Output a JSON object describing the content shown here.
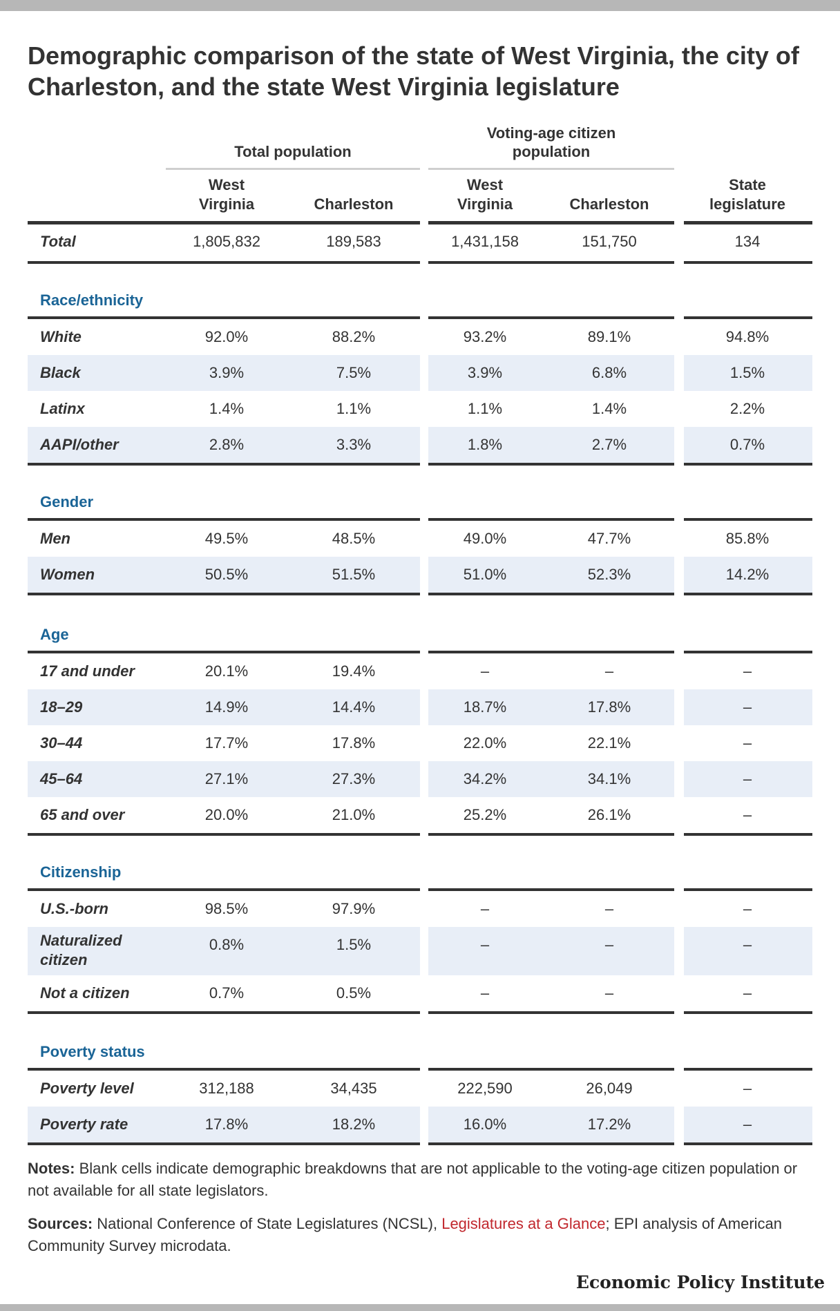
{
  "title": "Demographic comparison of the state of West Virginia, the city of Charleston, and the state West Virginia legislature",
  "groups": [
    "Total population",
    "Voting-age citizen population"
  ],
  "columns": [
    [
      "West",
      "Virginia"
    ],
    [
      "Charleston"
    ],
    [
      "West",
      "Virginia"
    ],
    [
      "Charleston"
    ],
    [
      "State",
      "legislature"
    ]
  ],
  "chart_data": {
    "type": "table",
    "total": {
      "label": "Total",
      "cells": [
        "1,805,832",
        "189,583",
        "1,431,158",
        "151,750",
        "134"
      ]
    },
    "sections": [
      {
        "name": "Race/ethnicity",
        "rows": [
          {
            "label": "White",
            "cells": [
              "92.0%",
              "88.2%",
              "93.2%",
              "89.1%",
              "94.8%"
            ]
          },
          {
            "label": "Black",
            "cells": [
              "3.9%",
              "7.5%",
              "3.9%",
              "6.8%",
              "1.5%"
            ]
          },
          {
            "label": "Latinx",
            "cells": [
              "1.4%",
              "1.1%",
              "1.1%",
              "1.4%",
              "2.2%"
            ]
          },
          {
            "label": "AAPI/other",
            "cells": [
              "2.8%",
              "3.3%",
              "1.8%",
              "2.7%",
              "0.7%"
            ]
          }
        ]
      },
      {
        "name": "Gender",
        "rows": [
          {
            "label": "Men",
            "cells": [
              "49.5%",
              "48.5%",
              "49.0%",
              "47.7%",
              "85.8%"
            ]
          },
          {
            "label": "Women",
            "cells": [
              "50.5%",
              "51.5%",
              "51.0%",
              "52.3%",
              "14.2%"
            ]
          }
        ]
      },
      {
        "name": "Age",
        "rows": [
          {
            "label": "17 and under",
            "cells": [
              "20.1%",
              "19.4%",
              "–",
              "–",
              "–"
            ]
          },
          {
            "label": "18–29",
            "cells": [
              "14.9%",
              "14.4%",
              "18.7%",
              "17.8%",
              "–"
            ]
          },
          {
            "label": "30–44",
            "cells": [
              "17.7%",
              "17.8%",
              "22.0%",
              "22.1%",
              "–"
            ]
          },
          {
            "label": "45–64",
            "cells": [
              "27.1%",
              "27.3%",
              "34.2%",
              "34.1%",
              "–"
            ]
          },
          {
            "label": "65 and over",
            "cells": [
              "20.0%",
              "21.0%",
              "25.2%",
              "26.1%",
              "–"
            ]
          }
        ]
      },
      {
        "name": "Citizenship",
        "rows": [
          {
            "label": "U.S.-born",
            "cells": [
              "98.5%",
              "97.9%",
              "–",
              "–",
              "–"
            ]
          },
          {
            "label": "Naturalized citizen",
            "cells": [
              "0.8%",
              "1.5%",
              "–",
              "–",
              "–"
            ]
          },
          {
            "label": "Not a citizen",
            "cells": [
              "0.7%",
              "0.5%",
              "–",
              "–",
              "–"
            ]
          }
        ]
      },
      {
        "name": "Poverty status",
        "rows": [
          {
            "label": "Poverty level",
            "cells": [
              "312,188",
              "34,435",
              "222,590",
              "26,049",
              "–"
            ]
          },
          {
            "label": "Poverty rate",
            "cells": [
              "17.8%",
              "18.2%",
              "16.0%",
              "17.2%",
              "–"
            ]
          }
        ]
      }
    ]
  },
  "notes": {
    "notes_label": "Notes:",
    "notes_text": " Blank cells indicate demographic breakdowns that are not applicable to the voting-age citizen population or not available for all state legislators.",
    "sources_label": "Sources:",
    "sources_text_1": " National Conference of State Legislatures (NCSL), ",
    "sources_link": "Legislatures at a Glance",
    "sources_text_2": "; EPI analysis of American Community Survey microdata."
  },
  "brand": "Economic Policy Institute",
  "colors": {
    "section_heading": "#1a6496",
    "band": "#e8eef7",
    "link": "#c1272d"
  }
}
